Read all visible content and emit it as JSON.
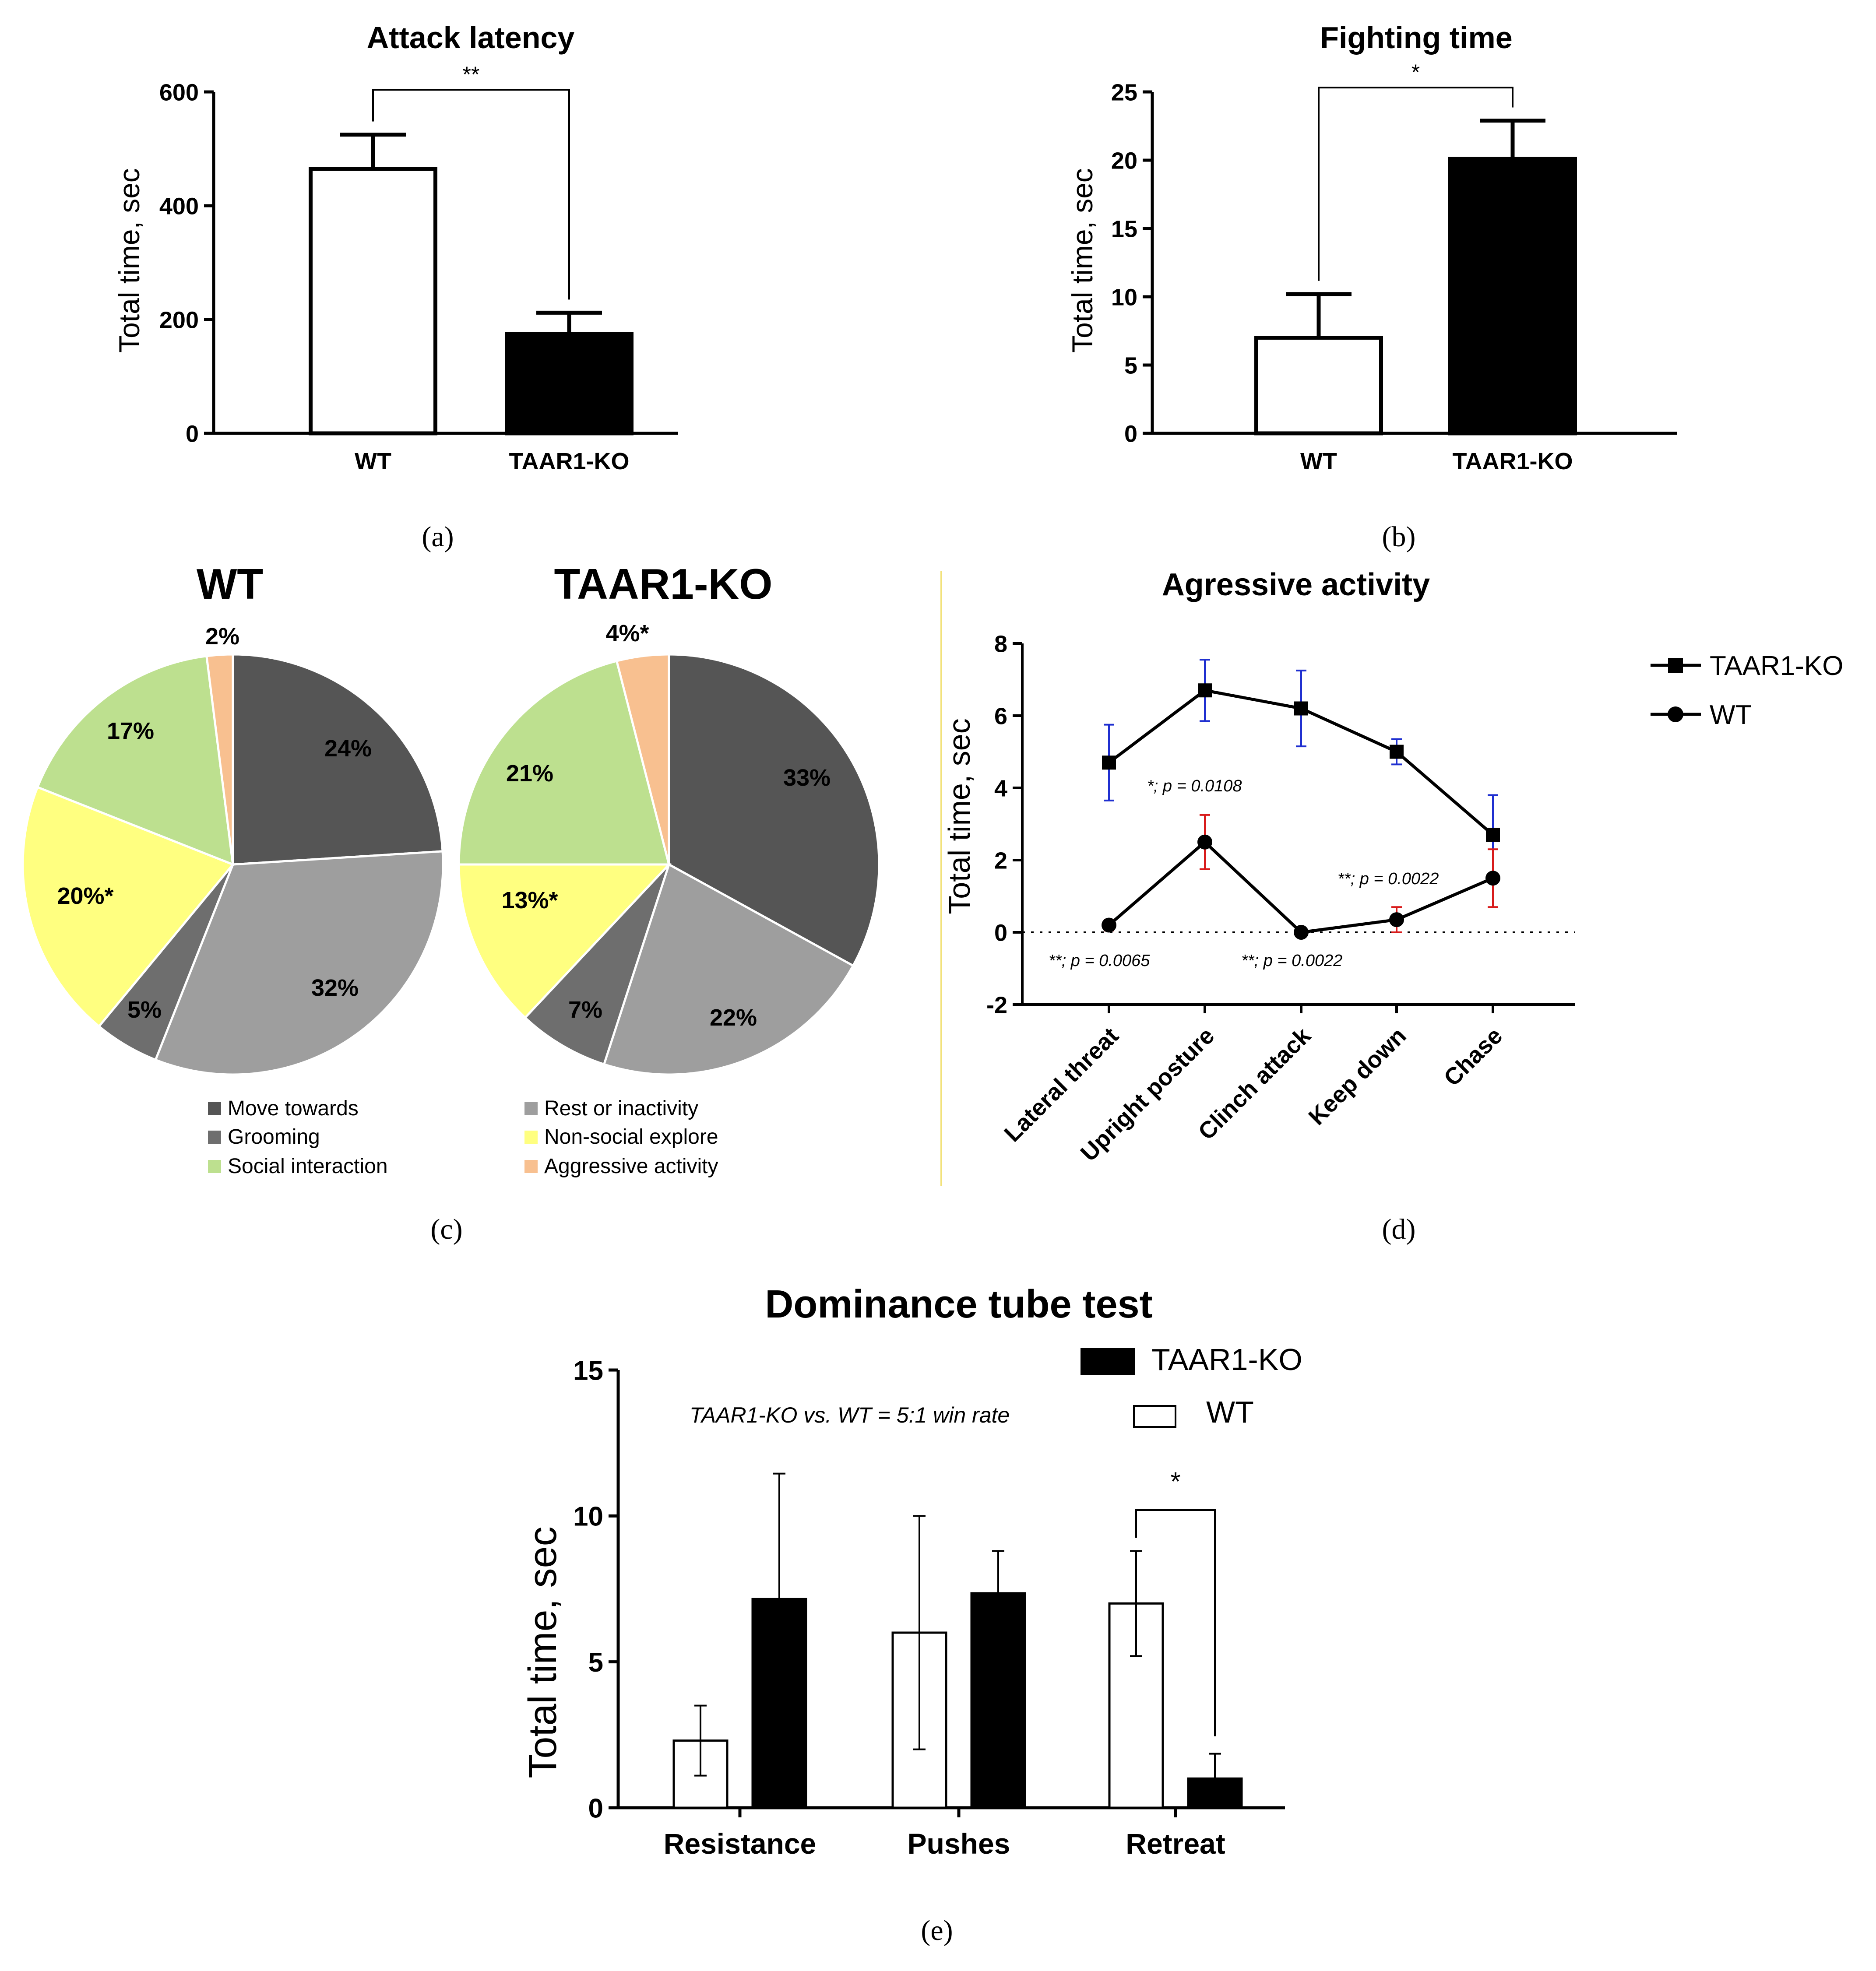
{
  "colors": {
    "ko_fill": "#000000",
    "wt_fill": "#ffffff",
    "ko_errorbar": "#1f2fd0",
    "wt_errorbar": "#d81b1b",
    "divider": "#f2e27a"
  },
  "panel_labels": [
    "(a)",
    "(b)",
    "(c)",
    "(d)",
    "(e)"
  ],
  "chart_data": [
    {
      "id": "a",
      "type": "bar",
      "title": "Attack latency",
      "ylabel": "Total time, sec",
      "categories": [
        "WT",
        "TAAR1-KO"
      ],
      "values": [
        465,
        175
      ],
      "errors": [
        60,
        37
      ],
      "fills": [
        "#ffffff",
        "#000000"
      ],
      "ylim": [
        0,
        600
      ],
      "yticks": [
        "0",
        "200",
        "400",
        "600"
      ],
      "significance": "**"
    },
    {
      "id": "b",
      "type": "bar",
      "title": "Fighting time",
      "ylabel": "Total time, sec",
      "categories": [
        "WT",
        "TAAR1-KO"
      ],
      "values": [
        7,
        20.1
      ],
      "errors": [
        3.2,
        2.8
      ],
      "fills": [
        "#ffffff",
        "#000000"
      ],
      "ylim": [
        0,
        25
      ],
      "yticks": [
        "0",
        "5",
        "10",
        "15",
        "20",
        "25"
      ],
      "significance": "*"
    },
    {
      "id": "c-wt",
      "type": "pie",
      "title": "WT",
      "slices": [
        {
          "label": "Move towards",
          "value": 24,
          "text": "24%",
          "color": "#555555"
        },
        {
          "label": "Rest or inactivity",
          "value": 32,
          "text": "32%",
          "color": "#9e9e9e"
        },
        {
          "label": "Grooming",
          "value": 5,
          "text": "5%",
          "color": "#6e6e6e"
        },
        {
          "label": "Non-social explore",
          "value": 20,
          "text": "20%*",
          "color": "#ffff80"
        },
        {
          "label": "Social interaction",
          "value": 17,
          "text": "17%",
          "color": "#bde08f"
        },
        {
          "label": "Aggressive activity",
          "value": 2,
          "text": "2%",
          "color": "#f8c090"
        }
      ]
    },
    {
      "id": "c-ko",
      "type": "pie",
      "title": "TAAR1-KO",
      "slices": [
        {
          "label": "Move towards",
          "value": 33,
          "text": "33%",
          "color": "#555555"
        },
        {
          "label": "Rest or inactivity",
          "value": 22,
          "text": "22%",
          "color": "#9e9e9e"
        },
        {
          "label": "Grooming",
          "value": 7,
          "text": "7%",
          "color": "#6e6e6e"
        },
        {
          "label": "Non-social explore",
          "value": 13,
          "text": "13%*",
          "color": "#ffff80"
        },
        {
          "label": "Social interaction",
          "value": 21,
          "text": "21%",
          "color": "#bde08f"
        },
        {
          "label": "Aggressive activity",
          "value": 4,
          "text": "4%*",
          "color": "#f8c090"
        }
      ],
      "legend": [
        {
          "label": "Move towards",
          "color": "#555555"
        },
        {
          "label": "Rest or inactivity",
          "color": "#9e9e9e"
        },
        {
          "label": "Grooming",
          "color": "#6e6e6e"
        },
        {
          "label": "Non-social explore",
          "color": "#ffff80"
        },
        {
          "label": "Social interaction",
          "color": "#bde08f"
        },
        {
          "label": "Aggressive activity",
          "color": "#f8c090"
        }
      ]
    },
    {
      "id": "d",
      "type": "line",
      "title": "Agressive activity",
      "ylabel": "Total time, sec",
      "categories": [
        "Lateral threat",
        "Upright posture",
        "Clinch attack",
        "Keep down",
        "Chase"
      ],
      "ylim": [
        -2,
        8
      ],
      "yticks": [
        "-2",
        "0",
        "2",
        "4",
        "6",
        "8"
      ],
      "series": [
        {
          "name": "TAAR1-KO",
          "marker": "square",
          "values": [
            4.7,
            6.7,
            6.2,
            5.0,
            2.7
          ],
          "errors": [
            1.05,
            0.85,
            1.05,
            0.35,
            1.1
          ]
        },
        {
          "name": "WT",
          "marker": "circle",
          "values": [
            0.2,
            2.5,
            0.0,
            0.35,
            1.5
          ],
          "errors": [
            0.15,
            0.75,
            0.05,
            0.35,
            0.8
          ]
        }
      ],
      "annotations": [
        "*; p = 0.0108",
        "**; p = 0.0022",
        "**; p = 0.0065",
        "**; p = 0.0022"
      ],
      "legend_position": "right"
    },
    {
      "id": "e",
      "type": "bar",
      "title": "Dominance tube test",
      "ylabel": "Total time, sec",
      "categories": [
        "Resistance",
        "Pushes",
        "Retreat"
      ],
      "ylim": [
        0,
        15
      ],
      "yticks": [
        "0",
        "5",
        "10",
        "15"
      ],
      "series": [
        {
          "name": "WT",
          "values": [
            2.3,
            6.0,
            7.0
          ],
          "errors": [
            1.2,
            4.0,
            1.8
          ],
          "fill": "#ffffff"
        },
        {
          "name": "TAAR1-KO",
          "values": [
            7.15,
            7.35,
            1.0
          ],
          "errors": [
            4.3,
            1.45,
            0.85
          ],
          "fill": "#000000"
        }
      ],
      "legend": [
        "TAAR1-KO",
        "WT"
      ],
      "annotation": "TAAR1-KO vs. WT = 5:1 win rate",
      "significance": "*"
    }
  ]
}
